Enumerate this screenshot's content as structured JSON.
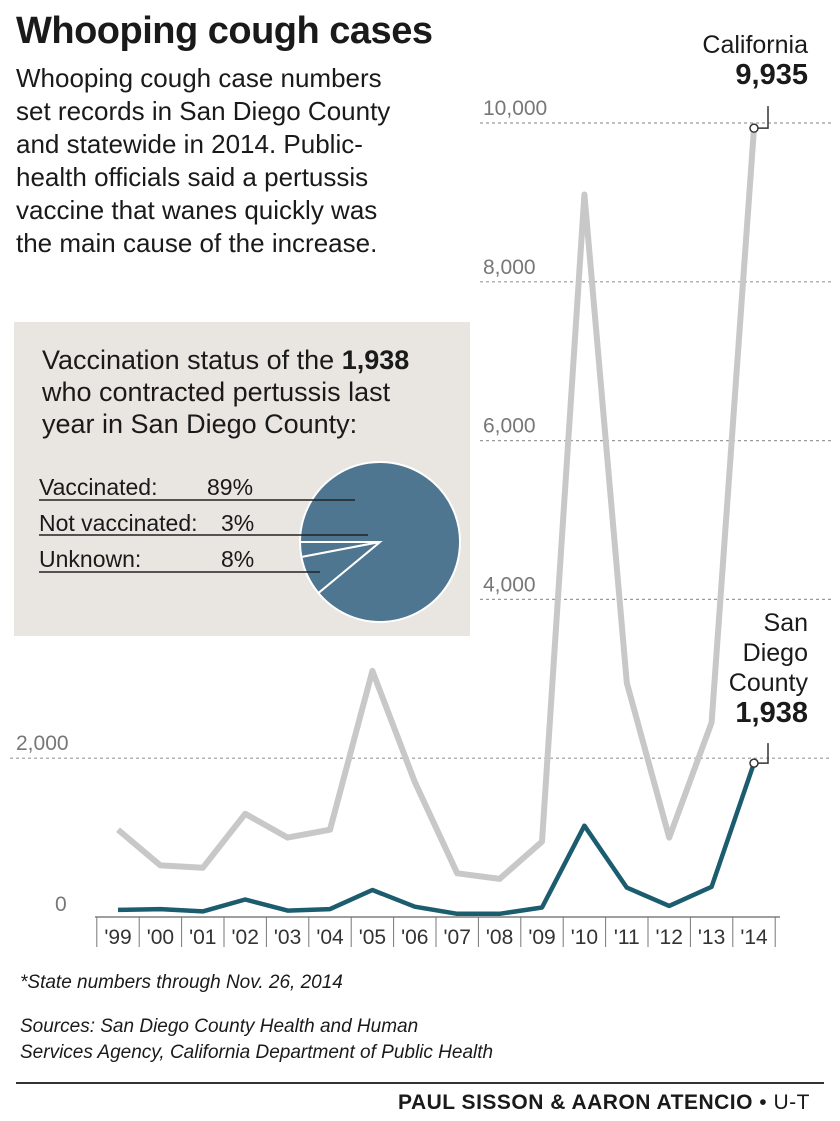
{
  "header": {
    "title": "Whooping cough cases",
    "intro_lines": [
      "Whooping cough case numbers",
      "set records in San Diego County",
      "and statewide in 2014. Public-",
      "health officials said a pertussis",
      "vaccine that wanes quickly was",
      "the main cause of the increase."
    ]
  },
  "inset": {
    "heading_pre": "Vaccination status of the ",
    "heading_bold": "1,938",
    "heading_line2": "who contracted pertussis last",
    "heading_line3": "year in San Diego County:",
    "rows": [
      {
        "label": "Vaccinated:",
        "pct": "89%"
      },
      {
        "label": "Not vaccinated:",
        "pct": "3%"
      },
      {
        "label": "Unknown:",
        "pct": "8%"
      }
    ]
  },
  "labels": {
    "california_name": "California",
    "california_value": "9,935",
    "sd_line1": "San",
    "sd_line2": "Diego",
    "sd_line3": "County",
    "sd_value": "1,938"
  },
  "footer": {
    "note": "*State numbers through Nov. 26, 2014",
    "sources_line1": "Sources: San Diego County Health and Human",
    "sources_line2": "Services Agency, California Department of Public Health",
    "credit_names": "PAUL SISSON & AARON ATENCIO",
    "credit_sep": " • ",
    "credit_org": "U-T"
  },
  "colors": {
    "california": "#c8c8c8",
    "san_diego": "#1b5c6f",
    "pie": "#4e7690",
    "inset_bg": "#e9e5e0"
  },
  "chart_data": [
    {
      "type": "line",
      "categories": [
        "'99",
        "'00",
        "'01",
        "'02",
        "'03",
        "'04",
        "'05",
        "'06",
        "'07",
        "'08",
        "'09",
        "'10",
        "'11",
        "'12",
        "'13",
        "'14"
      ],
      "yticks": [
        0,
        2000,
        4000,
        6000,
        8000,
        10000
      ],
      "ytick_labels": [
        "0",
        "2,000",
        "4,000",
        "6,000",
        "8,000",
        "10,000"
      ],
      "ylim": [
        0,
        10000
      ],
      "series": [
        {
          "name": "California",
          "values": [
            1100,
            650,
            620,
            1300,
            1000,
            1100,
            3100,
            1700,
            550,
            480,
            950,
            9100,
            2950,
            1000,
            2450,
            9935
          ]
        },
        {
          "name": "San Diego County",
          "values": [
            90,
            100,
            70,
            220,
            80,
            100,
            340,
            130,
            40,
            40,
            120,
            1150,
            370,
            140,
            380,
            1938
          ]
        }
      ]
    },
    {
      "type": "pie",
      "categories": [
        "Vaccinated",
        "Not vaccinated",
        "Unknown"
      ],
      "values": [
        89,
        3,
        8
      ]
    }
  ]
}
